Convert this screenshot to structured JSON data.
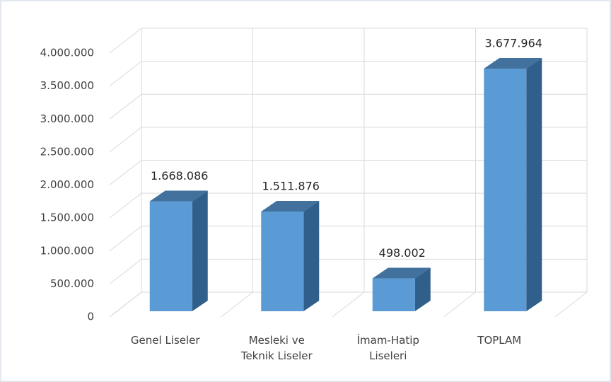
{
  "chart_data": {
    "type": "bar3d",
    "categories": [
      "Genel Liseler",
      "Mesleki ve Teknik Liseler",
      "İmam-Hatip Liseleri",
      "TOPLAM"
    ],
    "values": [
      1668086,
      1511876,
      498002,
      3677964
    ],
    "value_labels": [
      "1.668.086",
      "1.511.876",
      "498.002",
      "3.677.964"
    ],
    "color": "#5b9bd5",
    "ylim": [
      0,
      4000000
    ],
    "yticks": [
      0,
      {
        "value": 500000,
        "label": "500.000"
      },
      {
        "value": 1000000,
        "label": "1.000.000"
      },
      {
        "value": 1500000,
        "label": "1.500.000"
      },
      {
        "value": 2000000,
        "label": "2.000.000"
      },
      {
        "value": 2500000,
        "label": "2.500.000"
      },
      {
        "value": 3000000,
        "label": "3.000.000"
      },
      {
        "value": 3500000,
        "label": "3.500.000"
      },
      {
        "value": 4000000,
        "label": "4.000.000"
      }
    ],
    "grid": true
  }
}
